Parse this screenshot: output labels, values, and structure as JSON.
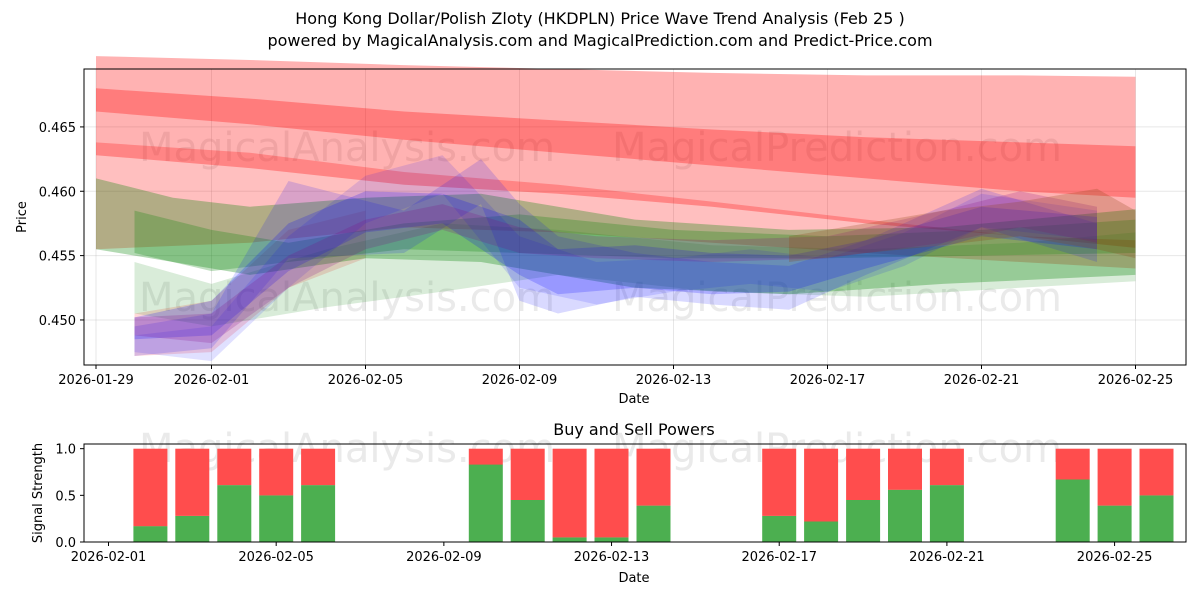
{
  "header": {
    "title": "Hong Kong Dollar/Polish Zloty (HKDPLN) Price Wave Trend Analysis (Feb 25 )",
    "subtitle": "powered by MagicalAnalysis.com and MagicalPrediction.com and Predict-Price.com"
  },
  "watermarks": [
    "MagicalAnalysis.com",
    "MagicalPrediction.com"
  ],
  "chart_data": [
    {
      "type": "area",
      "name": "price-wave-trend",
      "xlabel": "Date",
      "ylabel": "Price",
      "xticks": [
        "2026-01-29",
        "2026-02-01",
        "2026-02-05",
        "2026-02-09",
        "2026-02-13",
        "2026-02-17",
        "2026-02-21",
        "2026-02-25"
      ],
      "yticks": [
        "0.450",
        "0.455",
        "0.460",
        "0.465"
      ],
      "ylim": [
        0.4465,
        0.4695
      ],
      "grid": true,
      "x_start": "2026-01-29",
      "series": [
        {
          "name": "red-band-wide",
          "color": "#ff0000",
          "opacity": 0.3,
          "x": [
            0,
            4,
            8,
            12,
            16,
            20,
            24,
            27
          ],
          "upper": [
            0.4705,
            0.4702,
            0.4698,
            0.4695,
            0.4692,
            0.469,
            0.469,
            0.4689
          ],
          "lower": [
            0.4628,
            0.4618,
            0.4605,
            0.4598,
            0.4588,
            0.4575,
            0.4565,
            0.4556
          ]
        },
        {
          "name": "red-band-core",
          "color": "#ff0000",
          "opacity": 0.3,
          "x": [
            0,
            4,
            8,
            12,
            16,
            20,
            24,
            27
          ],
          "upper": [
            0.468,
            0.4672,
            0.4662,
            0.4655,
            0.4648,
            0.4642,
            0.4638,
            0.4635
          ],
          "lower": [
            0.4662,
            0.4652,
            0.464,
            0.463,
            0.462,
            0.461,
            0.46,
            0.4595
          ]
        },
        {
          "name": "red-band-lower",
          "color": "#ff0000",
          "opacity": 0.25,
          "x": [
            0,
            4,
            8,
            12,
            16,
            20,
            24,
            27
          ],
          "upper": [
            0.4638,
            0.463,
            0.4615,
            0.4605,
            0.4592,
            0.4578,
            0.4565,
            0.4562
          ],
          "lower": [
            0.4555,
            0.456,
            0.4572,
            0.4568,
            0.456,
            0.4552,
            0.4545,
            0.454
          ]
        },
        {
          "name": "red-band-early",
          "color": "#ff0000",
          "opacity": 0.15,
          "x": [
            1,
            3,
            5,
            7
          ],
          "upper": [
            0.4505,
            0.4515,
            0.457,
            0.4585
          ],
          "lower": [
            0.4472,
            0.4475,
            0.4525,
            0.4548
          ]
        },
        {
          "name": "green-band-a",
          "color": "#008000",
          "opacity": 0.3,
          "x": [
            0,
            2,
            4,
            7,
            10,
            14,
            18,
            22,
            27
          ],
          "upper": [
            0.461,
            0.4595,
            0.4588,
            0.4595,
            0.4598,
            0.4578,
            0.457,
            0.4572,
            0.4586
          ],
          "lower": [
            0.4555,
            0.4545,
            0.4535,
            0.4548,
            0.4545,
            0.4525,
            0.452,
            0.4528,
            0.4535
          ]
        },
        {
          "name": "green-band-b",
          "color": "#008000",
          "opacity": 0.25,
          "x": [
            1,
            3,
            5,
            8,
            11,
            15,
            19,
            23,
            27
          ],
          "upper": [
            0.4585,
            0.457,
            0.456,
            0.4575,
            0.4582,
            0.457,
            0.4565,
            0.457,
            0.4578
          ],
          "lower": [
            0.4552,
            0.4538,
            0.4545,
            0.4555,
            0.4552,
            0.4548,
            0.4548,
            0.455,
            0.4552
          ]
        },
        {
          "name": "green-band-c",
          "color": "#008000",
          "opacity": 0.15,
          "x": [
            1,
            3,
            6,
            9,
            12,
            16,
            20,
            24,
            27
          ],
          "upper": [
            0.4545,
            0.4528,
            0.4555,
            0.4575,
            0.457,
            0.4558,
            0.4555,
            0.456,
            0.4568
          ],
          "lower": [
            0.4505,
            0.4495,
            0.451,
            0.4522,
            0.4535,
            0.4522,
            0.4518,
            0.4525,
            0.453
          ]
        },
        {
          "name": "blue-band-a",
          "color": "#0000ff",
          "opacity": 0.2,
          "x": [
            1,
            3,
            5,
            7,
            9,
            11,
            12,
            14,
            16,
            18,
            20,
            23,
            26
          ],
          "upper": [
            0.4502,
            0.4515,
            0.4575,
            0.46,
            0.4598,
            0.4578,
            0.4555,
            0.4558,
            0.4552,
            0.455,
            0.4562,
            0.4588,
            0.458
          ],
          "lower": [
            0.4485,
            0.4488,
            0.4538,
            0.4568,
            0.4575,
            0.4535,
            0.452,
            0.4525,
            0.452,
            0.4522,
            0.454,
            0.4565,
            0.4555
          ]
        },
        {
          "name": "blue-band-b",
          "color": "#0000ff",
          "opacity": 0.15,
          "x": [
            1,
            3,
            5,
            8,
            10,
            11,
            12,
            14,
            16,
            18,
            20,
            23,
            26
          ],
          "upper": [
            0.4495,
            0.4505,
            0.4608,
            0.4585,
            0.4625,
            0.459,
            0.4565,
            0.4552,
            0.4545,
            0.4542,
            0.4562,
            0.4602,
            0.4575
          ],
          "lower": [
            0.4472,
            0.4478,
            0.4548,
            0.4552,
            0.459,
            0.4515,
            0.4505,
            0.4518,
            0.4512,
            0.4508,
            0.4535,
            0.4572,
            0.4545
          ]
        },
        {
          "name": "blue-band-c",
          "color": "#0000ff",
          "opacity": 0.12,
          "x": [
            1,
            3,
            5,
            7,
            9,
            11,
            13,
            15,
            17,
            19,
            21,
            23,
            26
          ],
          "upper": [
            0.4488,
            0.4495,
            0.4565,
            0.4612,
            0.4628,
            0.4565,
            0.4545,
            0.4548,
            0.4555,
            0.4548,
            0.4568,
            0.4598,
            0.4585
          ],
          "lower": [
            0.4475,
            0.4468,
            0.4525,
            0.4575,
            0.4598,
            0.4525,
            0.4512,
            0.4522,
            0.4528,
            0.4522,
            0.4542,
            0.4572,
            0.4562
          ]
        },
        {
          "name": "purple-band",
          "color": "#800080",
          "opacity": 0.2,
          "x": [
            1,
            3,
            5,
            7,
            9,
            11,
            13,
            16,
            19,
            22,
            24,
            26
          ],
          "upper": [
            0.4502,
            0.4505,
            0.455,
            0.4578,
            0.459,
            0.4572,
            0.4565,
            0.4562,
            0.4565,
            0.4585,
            0.46,
            0.4588
          ],
          "lower": [
            0.4488,
            0.4482,
            0.4525,
            0.4555,
            0.457,
            0.4552,
            0.4548,
            0.4545,
            0.4548,
            0.456,
            0.4572,
            0.456
          ]
        },
        {
          "name": "brown-band",
          "color": "#8b4513",
          "opacity": 0.25,
          "x": [
            18,
            20,
            22,
            24,
            26,
            27
          ],
          "upper": [
            0.4565,
            0.4575,
            0.4585,
            0.4592,
            0.4602,
            0.4585
          ],
          "lower": [
            0.4545,
            0.4552,
            0.4558,
            0.4565,
            0.4555,
            0.4548
          ]
        }
      ]
    },
    {
      "type": "bar",
      "name": "buy-and-sell-powers",
      "title": "Buy and Sell Powers",
      "xlabel": "Date",
      "ylabel": "Signal Strength",
      "xticks": [
        "2026-02-01",
        "2026-02-05",
        "2026-02-09",
        "2026-02-13",
        "2026-02-17",
        "2026-02-21",
        "2026-02-25"
      ],
      "yticks": [
        "0.0",
        "0.5",
        "1.0"
      ],
      "ylim": [
        0,
        1.05
      ],
      "x_start": "2026-02-01",
      "series": [
        {
          "name": "buy",
          "color": "#4caf50",
          "x": [
            1,
            2,
            3,
            4,
            5,
            9,
            10,
            11,
            12,
            13,
            16,
            17,
            18,
            19,
            20,
            23,
            24,
            25
          ],
          "values": [
            0.17,
            0.28,
            0.61,
            0.5,
            0.61,
            0.83,
            0.45,
            0.05,
            0.05,
            0.39,
            0.28,
            0.22,
            0.45,
            0.56,
            0.61,
            0.67,
            0.39,
            0.5
          ]
        },
        {
          "name": "sell",
          "color": "#ff4d4d",
          "x": [
            1,
            2,
            3,
            4,
            5,
            9,
            10,
            11,
            12,
            13,
            16,
            17,
            18,
            19,
            20,
            23,
            24,
            25
          ],
          "values": [
            0.83,
            0.72,
            0.39,
            0.5,
            0.39,
            0.17,
            0.55,
            0.95,
            0.95,
            0.61,
            0.72,
            0.78,
            0.55,
            0.44,
            0.39,
            0.33,
            0.61,
            0.5
          ]
        }
      ]
    }
  ]
}
